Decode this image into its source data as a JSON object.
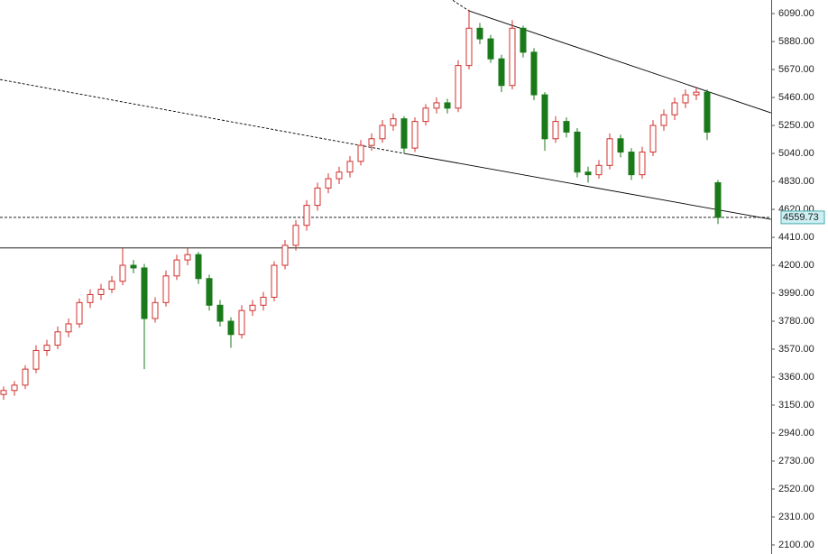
{
  "chart_data": {
    "type": "candlestick",
    "up_color": "#d0312d",
    "down_color": "#1a7a1a",
    "open": [
      3230,
      3260,
      3300,
      3420,
      3560,
      3600,
      3700,
      3760,
      3920,
      3980,
      4020,
      4080,
      4200,
      4180,
      3800,
      3920,
      4120,
      4240,
      4280,
      4100,
      3900,
      3780,
      3680,
      3860,
      3900,
      3960,
      4200,
      4350,
      4500,
      4650,
      4780,
      4850,
      4900,
      4980,
      5100,
      5150,
      5250,
      5300,
      5080,
      5280,
      5380,
      5420,
      5380,
      5700,
      5980,
      5900,
      5750,
      5550,
      5980,
      5800,
      5480,
      5150,
      5280,
      5200,
      4900,
      4880,
      4950,
      5150,
      5050,
      4880,
      5050,
      5250,
      5330,
      5420,
      5480,
      5500,
      4820
    ],
    "high": [
      3290,
      3330,
      3450,
      3600,
      3640,
      3740,
      3800,
      3950,
      4020,
      4060,
      4120,
      4330,
      4240,
      4210,
      3960,
      4160,
      4280,
      4330,
      4300,
      4130,
      3940,
      3810,
      3900,
      3940,
      4000,
      4230,
      4390,
      4540,
      4690,
      4820,
      4890,
      4940,
      5020,
      5140,
      5190,
      5290,
      5340,
      5320,
      5310,
      5410,
      5460,
      5450,
      5740,
      6120,
      6020,
      5930,
      5780,
      6040,
      6000,
      5830,
      5500,
      5320,
      5310,
      5230,
      4940,
      4990,
      5190,
      5180,
      5080,
      5090,
      5290,
      5370,
      5460,
      5520,
      5540,
      5520,
      4840
    ],
    "low": [
      3190,
      3220,
      3270,
      3390,
      3520,
      3570,
      3660,
      3730,
      3880,
      3940,
      3990,
      4050,
      4140,
      3420,
      3770,
      3890,
      4090,
      4200,
      4060,
      3860,
      3740,
      3580,
      3650,
      3820,
      3860,
      3930,
      4170,
      4310,
      4460,
      4610,
      4740,
      4810,
      4860,
      4950,
      5060,
      5120,
      5210,
      5040,
      5050,
      5250,
      5340,
      5340,
      5350,
      5670,
      5860,
      5720,
      5500,
      5520,
      5760,
      5440,
      5060,
      5120,
      5160,
      4860,
      4820,
      4850,
      4920,
      5010,
      4840,
      4850,
      5020,
      5210,
      5290,
      5380,
      5440,
      5140,
      4510
    ],
    "close": [
      3260,
      3300,
      3420,
      3560,
      3600,
      3700,
      3760,
      3920,
      3980,
      4020,
      4080,
      4200,
      4180,
      3800,
      3920,
      4120,
      4240,
      4280,
      4100,
      3900,
      3780,
      3680,
      3860,
      3900,
      3960,
      4200,
      4350,
      4500,
      4650,
      4780,
      4850,
      4900,
      4980,
      5100,
      5150,
      5250,
      5300,
      5080,
      5280,
      5380,
      5420,
      5380,
      5700,
      5980,
      5900,
      5750,
      5550,
      5980,
      5800,
      5480,
      5150,
      5280,
      5200,
      4900,
      4880,
      4950,
      5150,
      5050,
      4880,
      5050,
      5250,
      5330,
      5420,
      5480,
      5500,
      5200,
      4559.73
    ],
    "ylim": [
      2032,
      6192
    ],
    "yticks": [
      {
        "value": 2100,
        "label": "2100.00"
      },
      {
        "value": 2310,
        "label": "2310.00"
      },
      {
        "value": 2520,
        "label": "2520.00"
      },
      {
        "value": 2730,
        "label": "2730.00"
      },
      {
        "value": 2940,
        "label": "2940.00"
      },
      {
        "value": 3150,
        "label": "3150.00"
      },
      {
        "value": 3360,
        "label": "3360.00"
      },
      {
        "value": 3570,
        "label": "3570.00"
      },
      {
        "value": 3780,
        "label": "3780.00"
      },
      {
        "value": 3990,
        "label": "3990.00"
      },
      {
        "value": 4200,
        "label": "4200.00"
      },
      {
        "value": 4410,
        "label": "4410.00"
      },
      {
        "value": 4620,
        "label": "4620.00"
      },
      {
        "value": 4830,
        "label": "4830.00"
      },
      {
        "value": 5040,
        "label": "5040.00"
      },
      {
        "value": 5250,
        "label": "5250.00"
      },
      {
        "value": 5460,
        "label": "5460.00"
      },
      {
        "value": 5670,
        "label": "5670.00"
      },
      {
        "value": 5880,
        "label": "5880.00"
      },
      {
        "value": 6090,
        "label": "6090.00"
      }
    ],
    "last_price": 4559.73,
    "hlines": [
      {
        "value": 4559.73,
        "style": "dashed"
      },
      {
        "value": 4330,
        "style": "solid"
      }
    ],
    "trendlines": [
      {
        "style": "dashed",
        "x": [
          -0.33,
          37
        ],
        "values": [
          5595,
          5040
        ]
      },
      {
        "style": "solid",
        "x": [
          37,
          70.9
        ],
        "values": [
          5040,
          4545
        ]
      },
      {
        "style": "dashed",
        "x": [
          41.5,
          43
        ],
        "values": [
          6190,
          6110
        ]
      },
      {
        "style": "solid",
        "x": [
          43,
          70.9
        ],
        "values": [
          6110,
          5345
        ]
      }
    ]
  }
}
